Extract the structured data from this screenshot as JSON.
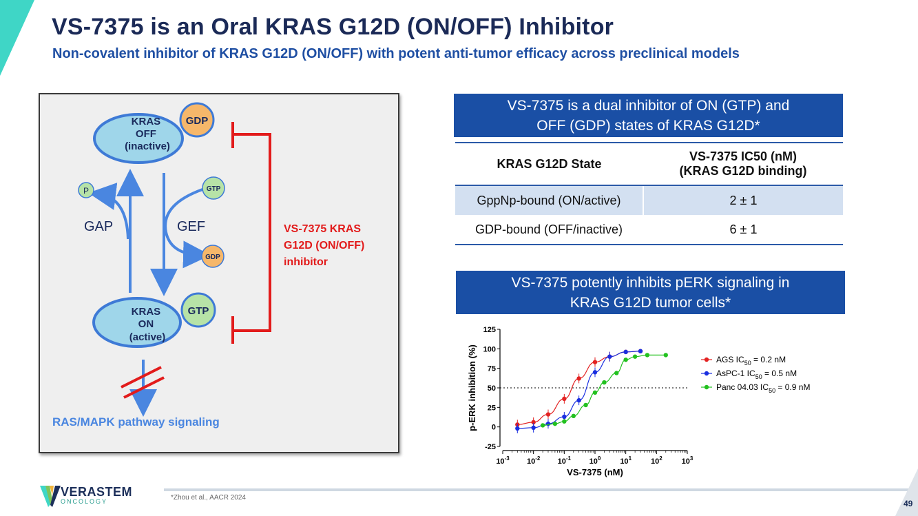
{
  "slide": {
    "title": "VS-7375 is an Oral KRAS G12D (ON/OFF) Inhibitor",
    "subtitle": "Non-covalent inhibitor of KRAS G12D (ON/OFF) with potent anti-tumor efficacy across preclinical models",
    "page_number": "49",
    "footnote": "*Zhou et al., AACR 2024",
    "accent_color": "#3fd6c6",
    "brand_color": "#1a4fa5"
  },
  "logo": {
    "name": "VERASTEM",
    "sub": "ONCOLOGY",
    "icon": "verastem-v-logo"
  },
  "diagram": {
    "kras_off": [
      "KRAS",
      "OFF",
      "(inactive)"
    ],
    "kras_on": [
      "KRAS",
      "ON",
      "(active)"
    ],
    "gdp_badge": "GDP",
    "gtp_badge": "GTP",
    "gtp_small": "GTP",
    "gdp_small": "GDP",
    "phosphate": "P",
    "gap": "GAP",
    "gef": "GEF",
    "inhibitor": [
      "VS-7375 KRAS",
      "G12D (ON/OFF)",
      "inhibitor"
    ],
    "pathway": "RAS/MAPK pathway signaling"
  },
  "ic50_box": {
    "header": [
      "VS-7375 is a dual inhibitor of ON (GTP) and",
      "OFF (GDP) states of KRAS G12D*"
    ],
    "col1": "KRAS G12D State",
    "col2": [
      "VS-7375 IC50 (nM)",
      "(KRAS G12D binding)"
    ],
    "rows": [
      {
        "state": "GppNp-bound (ON/active)",
        "value": "2 ± 1"
      },
      {
        "state": "GDP-bound (OFF/inactive)",
        "value": "6 ± 1"
      }
    ]
  },
  "perk_box": {
    "header": [
      "VS-7375 potently inhibits pERK signaling in",
      "KRAS G12D tumor cells*"
    ]
  },
  "chart_data": {
    "type": "scatter",
    "title": "",
    "xlabel": "VS-7375 (nM)",
    "ylabel": "p-ERK inhibition (%)",
    "xscale": "log",
    "xlim_exp": [
      -3,
      3
    ],
    "x_tick_base": "10",
    "x_tick_exps": [
      "-3",
      "-2",
      "-1",
      "0",
      "1",
      "2",
      "3"
    ],
    "ylim": [
      -25,
      125
    ],
    "y_ticks": [
      "-25",
      "0",
      "25",
      "50",
      "75",
      "100",
      "125"
    ],
    "reference_line_y": 50,
    "legend_position": "right",
    "series": [
      {
        "name": "AGS",
        "ic50_text": "= 0.2 nM",
        "color": "#e32222",
        "x": [
          0.003,
          0.01,
          0.03,
          0.1,
          0.3,
          1,
          3,
          10,
          30
        ],
        "y": [
          3,
          6,
          16,
          36,
          62,
          83,
          90,
          96,
          97
        ]
      },
      {
        "name": "AsPC-1",
        "ic50_text": "= 0.5 nM",
        "color": "#1a2fe0",
        "x": [
          0.003,
          0.01,
          0.03,
          0.1,
          0.3,
          1,
          3,
          10,
          30
        ],
        "y": [
          -2,
          -1,
          4,
          13,
          34,
          70,
          90,
          96,
          97
        ]
      },
      {
        "name": "Panc 04.03",
        "ic50_text": "= 0.9 nM",
        "color": "#22c11f",
        "x": [
          0.02,
          0.05,
          0.1,
          0.2,
          0.5,
          1,
          2,
          5,
          10,
          20,
          50,
          200
        ],
        "y": [
          2,
          4,
          7,
          14,
          28,
          44,
          57,
          69,
          86,
          90,
          92,
          92
        ]
      }
    ]
  }
}
